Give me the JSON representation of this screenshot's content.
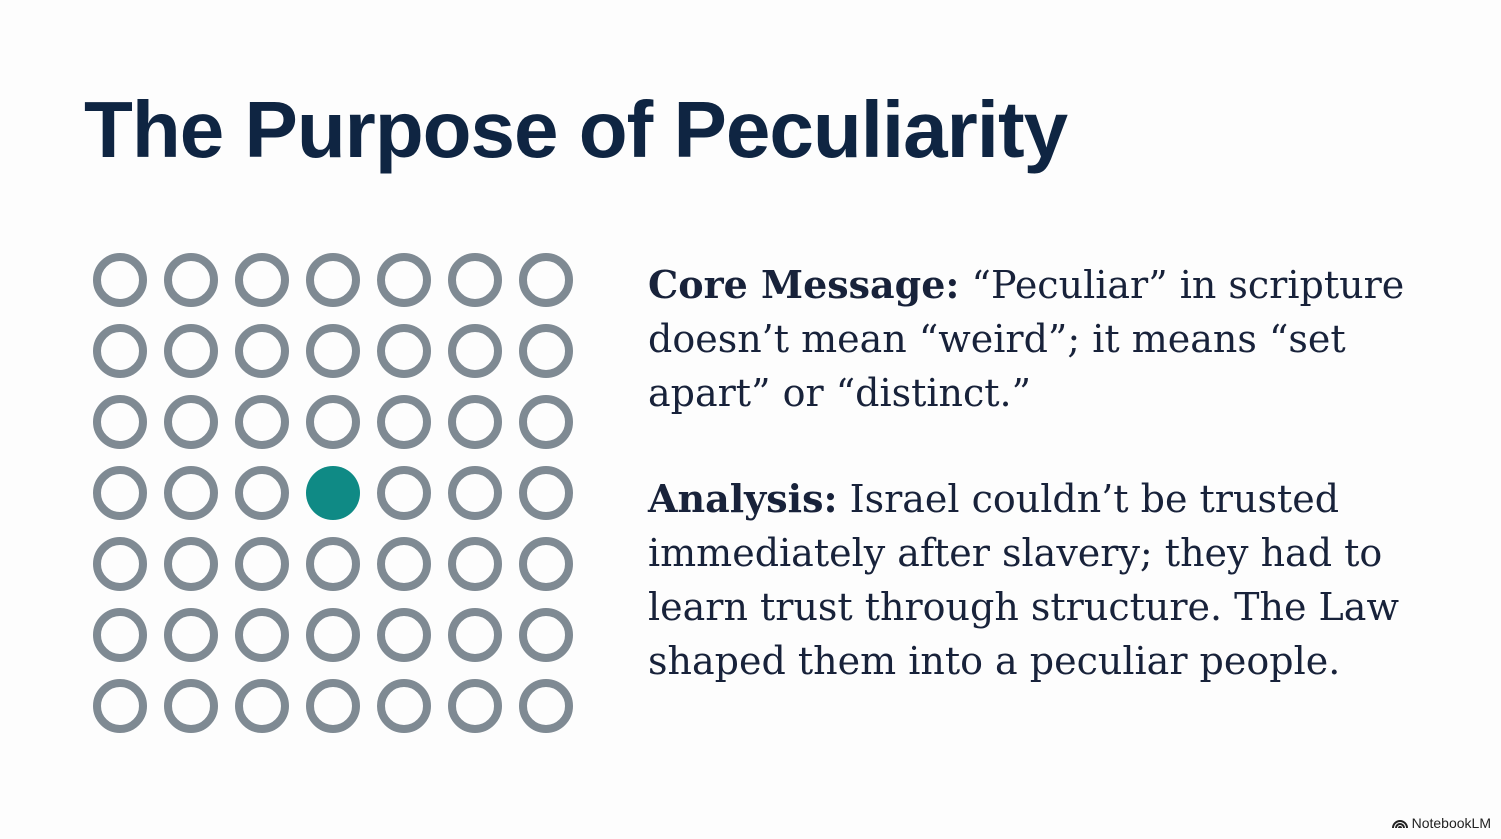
{
  "slide": {
    "title": "The Purpose of Peculiarity",
    "core_message_label": "Core Message:",
    "core_message_text": " “Peculiar” in scripture doesn’t mean “weird”; it means “set apart” or “distinct.”",
    "analysis_label": "Analysis:",
    "analysis_text": " Israel couldn’t be trusted immediately after slavery; they had to learn trust through structure. The Law shaped them into a peculiar people."
  },
  "dot_grid": {
    "rows": 7,
    "cols": 7,
    "highlighted": {
      "row": 4,
      "col": 4
    },
    "ring_color": "#7f8a93",
    "highlight_color": "#0f8a85"
  },
  "branding": {
    "label": "NotebookLM",
    "icon": "notebooklm-logo-icon"
  }
}
